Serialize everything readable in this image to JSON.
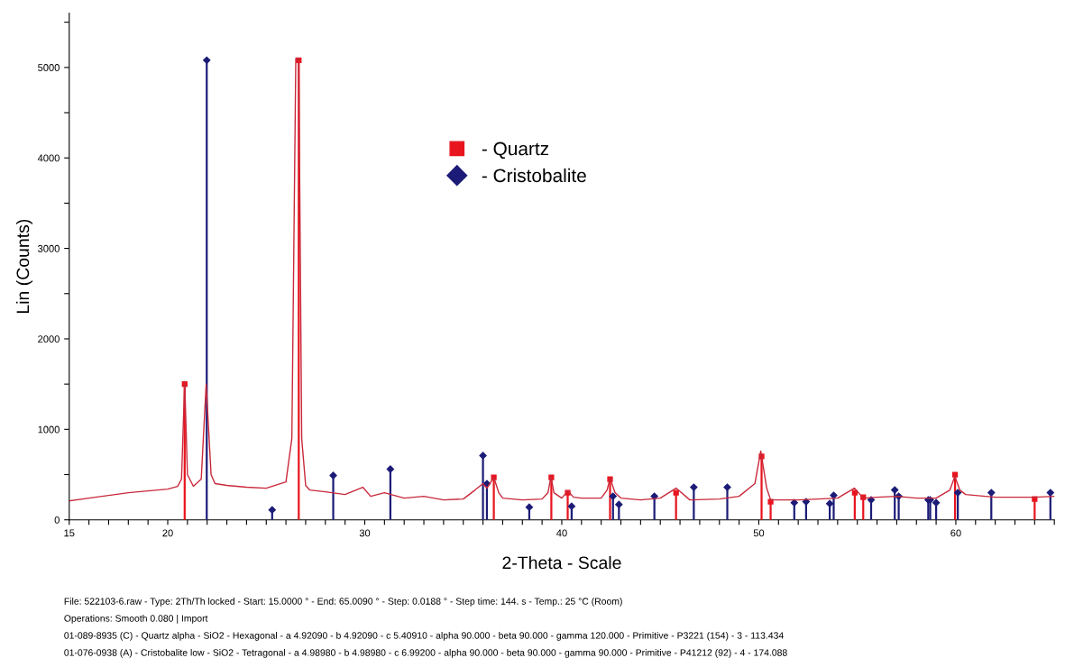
{
  "chart_data": {
    "type": "line",
    "xlabel": "2-Theta - Scale",
    "ylabel": "Lin (Counts)",
    "xlim": [
      15,
      65
    ],
    "ylim": [
      0,
      5600
    ],
    "xticks": [
      15,
      20,
      30,
      40,
      50,
      60,
      {
        "value": 16,
        "label": null
      },
      {
        "value": 17,
        "label": null
      },
      {
        "value": 18,
        "label": null
      },
      {
        "value": 19,
        "label": null
      },
      {
        "value": 21,
        "label": null
      },
      {
        "value": 22,
        "label": null
      },
      {
        "value": 23,
        "label": null
      },
      {
        "value": 24,
        "label": null
      },
      {
        "value": 25,
        "label": null
      },
      {
        "value": 26,
        "label": null
      },
      {
        "value": 27,
        "label": null
      },
      {
        "value": 28,
        "label": null
      },
      {
        "value": 29,
        "label": null
      },
      {
        "value": 31,
        "label": null
      },
      {
        "value": 32,
        "label": null
      },
      {
        "value": 33,
        "label": null
      },
      {
        "value": 34,
        "label": null
      },
      {
        "value": 35,
        "label": null
      },
      {
        "value": 36,
        "label": null
      },
      {
        "value": 37,
        "label": null
      },
      {
        "value": 38,
        "label": null
      },
      {
        "value": 39,
        "label": null
      },
      {
        "value": 41,
        "label": null
      },
      {
        "value": 42,
        "label": null
      },
      {
        "value": 43,
        "label": null
      },
      {
        "value": 44,
        "label": null
      },
      {
        "value": 45,
        "label": null
      },
      {
        "value": 46,
        "label": null
      },
      {
        "value": 47,
        "label": null
      },
      {
        "value": 48,
        "label": null
      },
      {
        "value": 49,
        "label": null
      },
      {
        "value": 51,
        "label": null
      },
      {
        "value": 52,
        "label": null
      },
      {
        "value": 53,
        "label": null
      },
      {
        "value": 54,
        "label": null
      },
      {
        "value": 55,
        "label": null
      },
      {
        "value": 56,
        "label": null
      },
      {
        "value": 57,
        "label": null
      },
      {
        "value": 58,
        "label": null
      },
      {
        "value": 59,
        "label": null
      },
      {
        "value": 61,
        "label": null
      },
      {
        "value": 62,
        "label": null
      },
      {
        "value": 63,
        "label": null
      },
      {
        "value": 64,
        "label": null
      },
      {
        "value": 65,
        "label": null
      }
    ],
    "yticks": [
      0,
      1000,
      2000,
      3000,
      4000,
      5000,
      {
        "value": 500,
        "label": null
      },
      {
        "value": 1500,
        "label": null
      },
      {
        "value": 2500,
        "label": null
      },
      {
        "value": 3500,
        "label": null
      },
      {
        "value": 4500,
        "label": null
      },
      {
        "value": 5500,
        "label": null
      }
    ],
    "grid": false,
    "legend": "top",
    "series": [
      {
        "color": "#c8283a",
        "marker": "none",
        "x": [
          15,
          16,
          17,
          18,
          19,
          20,
          20.5,
          20.7,
          20.86,
          21.0,
          21.3,
          21.7,
          21.95,
          22.2,
          22.4,
          23,
          24,
          25,
          26,
          26.3,
          26.5,
          26.65,
          26.8,
          27.0,
          27.2,
          28,
          29,
          29.9,
          30.3,
          31,
          32,
          33,
          34,
          35,
          35.6,
          36.0,
          36.2,
          36.55,
          36.8,
          37,
          38,
          39,
          39.3,
          39.45,
          39.6,
          40,
          40.3,
          40.6,
          41,
          42,
          42.3,
          42.45,
          42.7,
          43,
          44,
          45,
          45.8,
          46.5,
          48,
          49,
          49.8,
          50.1,
          50.4,
          50.6,
          52,
          54,
          54.85,
          55.3,
          56,
          57,
          58,
          59,
          59.7,
          59.95,
          60.2,
          60.5,
          62,
          64,
          65
        ],
        "values": [
          210,
          240,
          270,
          300,
          320,
          340,
          370,
          450,
          1530,
          500,
          370,
          450,
          1500,
          500,
          400,
          380,
          360,
          350,
          420,
          900,
          5100,
          5100,
          900,
          380,
          330,
          310,
          280,
          360,
          260,
          300,
          240,
          260,
          220,
          230,
          330,
          400,
          350,
          470,
          300,
          240,
          220,
          230,
          300,
          480,
          300,
          240,
          320,
          250,
          240,
          240,
          330,
          460,
          300,
          240,
          220,
          240,
          350,
          220,
          230,
          260,
          400,
          760,
          350,
          220,
          220,
          240,
          350,
          240,
          250,
          260,
          240,
          240,
          330,
          480,
          330,
          280,
          250,
          250,
          260
        ]
      },
      {
        "type": "lollipop",
        "name": "- Quartz",
        "color": "#e8141e",
        "marker": "square",
        "x": [
          20.86,
          26.65,
          36.55,
          39.47,
          40.3,
          42.45,
          45.8,
          50.14,
          50.6,
          54.87,
          55.3,
          59.96,
          64.0
        ],
        "values": [
          1500,
          5080,
          470,
          470,
          300,
          450,
          300,
          700,
          200,
          300,
          250,
          500,
          230
        ]
      },
      {
        "type": "lollipop",
        "name": "- Cristobalite",
        "color": "#1c1c78",
        "marker": "diamond",
        "x": [
          21.98,
          25.3,
          28.4,
          31.3,
          36.0,
          36.2,
          38.35,
          40.5,
          42.6,
          42.9,
          44.7,
          46.7,
          48.4,
          51.8,
          52.4,
          53.6,
          53.8,
          55.7,
          56.9,
          57.1,
          58.6,
          58.7,
          59.0,
          60.1,
          61.8,
          64.8
        ],
        "values": [
          5080,
          110,
          490,
          560,
          710,
          400,
          140,
          150,
          260,
          170,
          260,
          360,
          360,
          190,
          200,
          180,
          270,
          220,
          330,
          260,
          220,
          220,
          190,
          300,
          300,
          300
        ]
      }
    ],
    "annotations": [
      "File: 522103-6.raw - Type: 2Th/Th locked - Start: 15.0000 ° - End: 65.0090 ° - Step: 0.0188 ° - Step time: 144. s - Temp.: 25 °C (Room)",
      "Operations: Smooth 0.080 | Import",
      "01-089-8935 (C) - Quartz alpha - SiO2 - Hexagonal - a 4.92090 - b 4.92090 - c 5.40910 - alpha 90.000 - beta 90.000 - gamma 120.000 - Primitive - P3221 (154) - 3 - 113.434",
      "01-076-0938 (A) - Cristobalite low - SiO2 - Tetragonal - a 4.98980 - b 4.98980 - c 6.99200 - alpha 90.000 - beta 90.000 - gamma 90.000 - Primitive - P41212 (92) - 4 - 174.088"
    ]
  }
}
